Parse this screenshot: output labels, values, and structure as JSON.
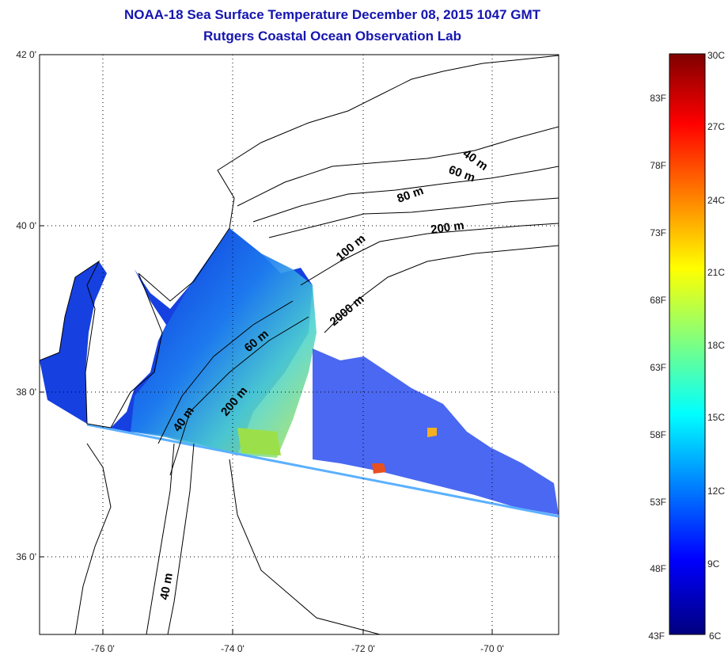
{
  "title_line1": "NOAA-18 Sea Surface Temperature December 08, 2015 1047 GMT",
  "title_line2": "Rutgers Coastal Ocean Observation Lab",
  "map": {
    "lat_ticks": [
      "42 0'",
      "40 0'",
      "38 0'",
      "36 0'"
    ],
    "lon_ticks": [
      "-76 0'",
      "-74 0'",
      "-72 0'",
      "-70 0'"
    ],
    "depth_labels": [
      "40 m",
      "60 m",
      "80 m",
      "200 m",
      "100 m",
      "2000 m",
      "60 m",
      "200 m",
      "40 m",
      "40 m"
    ],
    "grid": "dotted"
  },
  "colorbar": {
    "celsius_labels": [
      "30C",
      "27C",
      "24C",
      "21C",
      "18C",
      "15C",
      "12C",
      "9C",
      "6C"
    ],
    "fahrenheit_labels": [
      "83F",
      "78F",
      "73F",
      "68F",
      "63F",
      "58F",
      "53F",
      "48F",
      "43F"
    ],
    "colormap": [
      "#7f0000",
      "#ff0000",
      "#ffff00",
      "#00ffff",
      "#0000ff",
      "#00007f"
    ]
  }
}
